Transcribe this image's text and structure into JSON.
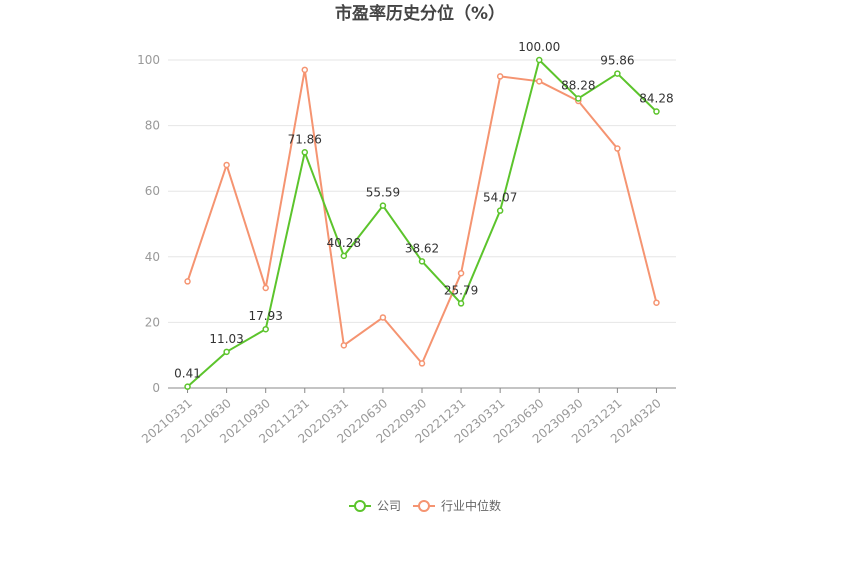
{
  "title": "市盈率历史分位（%）",
  "colors": {
    "company": "#5cc42c",
    "industry": "#f59471",
    "grid": "#e6e6e6",
    "axis": "#888888"
  },
  "legend": {
    "items": [
      "公司",
      "行业中位数"
    ]
  },
  "chart_data": {
    "type": "line",
    "title": "市盈率历史分位（%）",
    "ylim": [
      0,
      100
    ],
    "yticks": [
      0,
      20,
      40,
      60,
      80,
      100
    ],
    "grid": true,
    "legend_position": "bottom-center",
    "categories": [
      "20210331",
      "20210630",
      "20210930",
      "20211231",
      "20220331",
      "20220630",
      "20220930",
      "20221231",
      "20230331",
      "20230630",
      "20230930",
      "20231231",
      "20240320"
    ],
    "series": [
      {
        "name": "公司",
        "values": [
          0.41,
          11.03,
          17.93,
          71.86,
          40.28,
          55.59,
          38.62,
          25.79,
          54.07,
          100.0,
          88.28,
          95.86,
          84.28
        ],
        "labels": [
          "0.41",
          "11.03",
          "17.93",
          "71.86",
          "40.28",
          "55.59",
          "38.62",
          "25.79",
          "54.07",
          "100.00",
          "88.28",
          "95.86",
          "84.28"
        ]
      },
      {
        "name": "行业中位数",
        "values": [
          32.5,
          68,
          30.5,
          97,
          13,
          21.5,
          7.5,
          35,
          95,
          93.5,
          87.5,
          73,
          26
        ]
      }
    ]
  }
}
